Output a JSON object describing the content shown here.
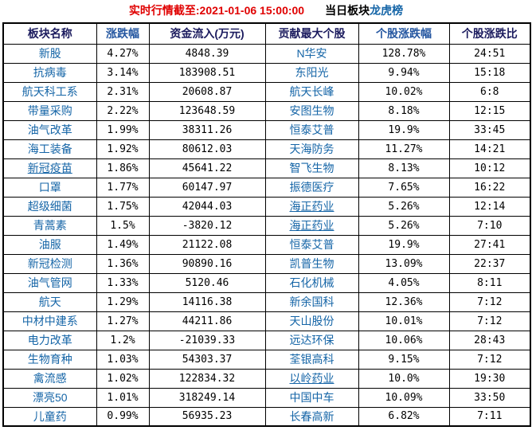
{
  "title": {
    "realtime": "实时行情截至:2021-01-06 15:00:00",
    "suffix_plain": "当日板块",
    "suffix_link": "龙虎榜"
  },
  "colors": {
    "title_red": "#e00000",
    "link_blue": "#1565a7",
    "header_navy": "#1b1b5e",
    "header_blue": "#2456a0",
    "border": "#000000",
    "background": "#ffffff"
  },
  "table": {
    "headers": [
      {
        "label": "板块名称",
        "tone": "navy"
      },
      {
        "label": "涨跌幅",
        "tone": "blue"
      },
      {
        "label": "资金流入(万元)",
        "tone": "navy"
      },
      {
        "label": "贡献最大个股",
        "tone": "navy"
      },
      {
        "label": "个股涨跌幅",
        "tone": "blue"
      },
      {
        "label": "个股涨跌比",
        "tone": "navy"
      }
    ],
    "rows": [
      {
        "sector": "新股",
        "sector_underline": false,
        "change": "4.27%",
        "inflow": "4848.39",
        "stock": "N华安",
        "stock_underline": false,
        "stock_change": "128.78%",
        "ratio": "24:51"
      },
      {
        "sector": "抗病毒",
        "sector_underline": false,
        "change": "3.14%",
        "inflow": "183908.51",
        "stock": "东阳光",
        "stock_underline": false,
        "stock_change": "9.94%",
        "ratio": "15:18"
      },
      {
        "sector": "航天科工系",
        "sector_underline": false,
        "change": "2.31%",
        "inflow": "20608.87",
        "stock": "航天长峰",
        "stock_underline": false,
        "stock_change": "10.02%",
        "ratio": "6:8"
      },
      {
        "sector": "带量采购",
        "sector_underline": false,
        "change": "2.22%",
        "inflow": "123648.59",
        "stock": "安图生物",
        "stock_underline": false,
        "stock_change": "8.18%",
        "ratio": "12:15"
      },
      {
        "sector": "油气改革",
        "sector_underline": false,
        "change": "1.99%",
        "inflow": "38311.26",
        "stock": "恒泰艾普",
        "stock_underline": false,
        "stock_change": "19.9%",
        "ratio": "33:45"
      },
      {
        "sector": "海工装备",
        "sector_underline": false,
        "change": "1.92%",
        "inflow": "80612.03",
        "stock": "天海防务",
        "stock_underline": false,
        "stock_change": "11.27%",
        "ratio": "14:21"
      },
      {
        "sector": "新冠疫苗",
        "sector_underline": true,
        "change": "1.86%",
        "inflow": "45641.22",
        "stock": "智飞生物",
        "stock_underline": false,
        "stock_change": "8.13%",
        "ratio": "10:12"
      },
      {
        "sector": "口罩",
        "sector_underline": false,
        "change": "1.77%",
        "inflow": "60147.97",
        "stock": "振德医疗",
        "stock_underline": false,
        "stock_change": "7.65%",
        "ratio": "16:22"
      },
      {
        "sector": "超级细菌",
        "sector_underline": false,
        "change": "1.75%",
        "inflow": "42044.03",
        "stock": "海正药业",
        "stock_underline": true,
        "stock_change": "5.26%",
        "ratio": "12:14"
      },
      {
        "sector": "青蒿素",
        "sector_underline": false,
        "change": "1.5%",
        "inflow": "-3820.12",
        "stock": "海正药业",
        "stock_underline": true,
        "stock_change": "5.26%",
        "ratio": "7:10"
      },
      {
        "sector": "油服",
        "sector_underline": false,
        "change": "1.49%",
        "inflow": "21122.08",
        "stock": "恒泰艾普",
        "stock_underline": false,
        "stock_change": "19.9%",
        "ratio": "27:41"
      },
      {
        "sector": "新冠检测",
        "sector_underline": false,
        "change": "1.36%",
        "inflow": "90890.16",
        "stock": "凯普生物",
        "stock_underline": false,
        "stock_change": "13.09%",
        "ratio": "22:37"
      },
      {
        "sector": "油气管网",
        "sector_underline": false,
        "change": "1.33%",
        "inflow": "5120.46",
        "stock": "石化机械",
        "stock_underline": false,
        "stock_change": "4.05%",
        "ratio": "8:11"
      },
      {
        "sector": "航天",
        "sector_underline": false,
        "change": "1.29%",
        "inflow": "14116.38",
        "stock": "新余国科",
        "stock_underline": false,
        "stock_change": "12.36%",
        "ratio": "7:12"
      },
      {
        "sector": "中材中建系",
        "sector_underline": false,
        "change": "1.27%",
        "inflow": "44211.86",
        "stock": "天山股份",
        "stock_underline": false,
        "stock_change": "10.01%",
        "ratio": "7:12"
      },
      {
        "sector": "电力改革",
        "sector_underline": false,
        "change": "1.2%",
        "inflow": "-21039.33",
        "stock": "远达环保",
        "stock_underline": false,
        "stock_change": "10.06%",
        "ratio": "28:43"
      },
      {
        "sector": "生物育种",
        "sector_underline": false,
        "change": "1.03%",
        "inflow": "54303.37",
        "stock": "荃银高科",
        "stock_underline": false,
        "stock_change": "9.15%",
        "ratio": "7:12"
      },
      {
        "sector": "禽流感",
        "sector_underline": false,
        "change": "1.02%",
        "inflow": "122834.32",
        "stock": "以岭药业",
        "stock_underline": true,
        "stock_change": "10.0%",
        "ratio": "19:30"
      },
      {
        "sector": "漂亮50",
        "sector_underline": false,
        "change": "1.01%",
        "inflow": "318249.14",
        "stock": "中国中车",
        "stock_underline": false,
        "stock_change": "10.09%",
        "ratio": "33:50"
      },
      {
        "sector": "儿童药",
        "sector_underline": false,
        "change": "0.99%",
        "inflow": "56935.23",
        "stock": "长春高新",
        "stock_underline": false,
        "stock_change": "6.82%",
        "ratio": "7:11"
      }
    ]
  }
}
